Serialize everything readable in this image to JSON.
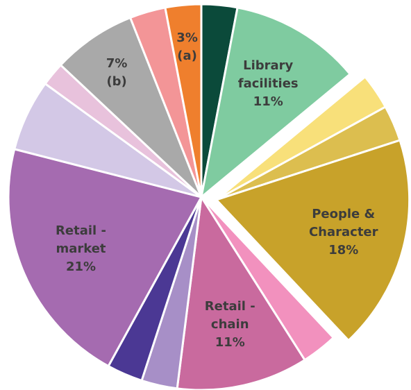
{
  "chart_data": {
    "type": "pie",
    "categories": [
      null,
      "Library facilities",
      null,
      null,
      "People & Character",
      null,
      "Retail - chain",
      null,
      null,
      "Retail - market",
      null,
      null,
      "(b)",
      null,
      "(a)"
    ],
    "values": [
      3,
      11,
      3,
      3,
      18,
      3,
      11,
      3,
      3,
      21,
      6,
      2,
      7,
      3,
      3
    ],
    "value_labels": [
      null,
      "11%",
      null,
      null,
      "18%",
      null,
      "11%",
      null,
      null,
      "21%",
      null,
      null,
      "7%",
      null,
      "3%"
    ],
    "colors": [
      "#0b4a3a",
      "#7fcba0",
      "#f8e07a",
      "#dcbe4f",
      "#c8a22a",
      "#f291be",
      "#c96a9e",
      "#a78fc7",
      "#4b3894",
      "#a56bb0",
      "#d3c8e6",
      "#e8c2dc",
      "#a9a9a9",
      "#f39597",
      "#ef7f2d"
    ],
    "exploded": [
      false,
      false,
      true,
      true,
      true,
      false,
      false,
      false,
      false,
      false,
      false,
      false,
      false,
      false,
      false
    ]
  }
}
